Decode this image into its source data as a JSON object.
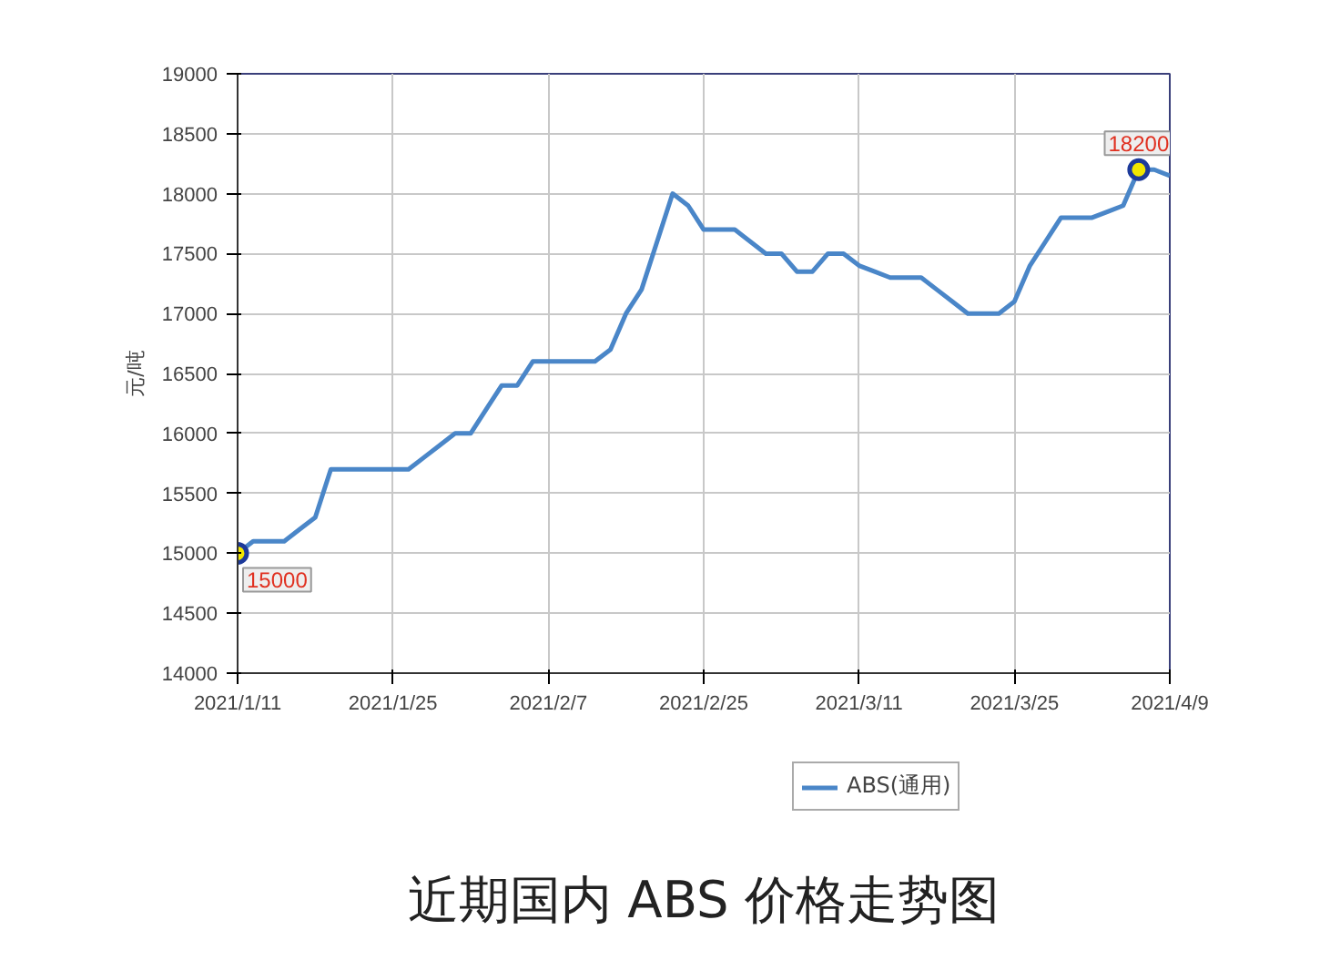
{
  "chart_data": {
    "type": "line",
    "title": "近期国内 ABS 价格走势图",
    "ylabel": "元/吨",
    "categories": [
      "2021/1/11",
      null,
      null,
      null,
      null,
      null,
      null,
      null,
      null,
      null,
      "2021/1/25",
      null,
      null,
      null,
      null,
      null,
      null,
      null,
      null,
      null,
      "2021/2/7",
      null,
      null,
      null,
      null,
      null,
      null,
      null,
      null,
      null,
      "2021/2/25",
      null,
      null,
      null,
      null,
      null,
      null,
      null,
      null,
      null,
      "2021/3/11",
      null,
      null,
      null,
      null,
      null,
      null,
      null,
      null,
      null,
      "2021/3/25",
      null,
      null,
      null,
      null,
      null,
      null,
      null,
      null,
      null,
      "2021/4/9"
    ],
    "series": [
      {
        "name": "ABS(通用)",
        "color": "#4a86c8",
        "values": [
          15000,
          15100,
          15100,
          15100,
          15200,
          15300,
          15700,
          15700,
          15700,
          15700,
          15700,
          15700,
          15800,
          15900,
          16000,
          16000,
          16200,
          16400,
          16400,
          16600,
          16600,
          16600,
          16600,
          16600,
          16700,
          17000,
          17200,
          17600,
          18000,
          17900,
          17700,
          17700,
          17700,
          17600,
          17500,
          17500,
          17350,
          17350,
          17500,
          17500,
          17400,
          17350,
          17300,
          17300,
          17300,
          17200,
          17100,
          17000,
          17000,
          17000,
          17100,
          17400,
          17600,
          17800,
          17800,
          17800,
          17850,
          17900,
          18200,
          18200,
          18150
        ],
        "value_labels": [
          "15000",
          null,
          null,
          null,
          null,
          null,
          null,
          null,
          null,
          null,
          null,
          null,
          null,
          null,
          null,
          null,
          null,
          null,
          null,
          null,
          null,
          null,
          null,
          null,
          null,
          null,
          null,
          null,
          null,
          null,
          null,
          null,
          null,
          null,
          null,
          null,
          null,
          null,
          null,
          null,
          null,
          null,
          null,
          null,
          null,
          null,
          null,
          null,
          null,
          null,
          null,
          null,
          null,
          null,
          null,
          null,
          null,
          null,
          "18200",
          null,
          null
        ]
      }
    ],
    "ylim": [
      14000,
      19000
    ],
    "yticks": [
      14000,
      14500,
      15000,
      15500,
      16000,
      16500,
      17000,
      17500,
      18000,
      18500,
      19000
    ],
    "grid": true,
    "legend": "bottom",
    "line_style": "solid"
  }
}
